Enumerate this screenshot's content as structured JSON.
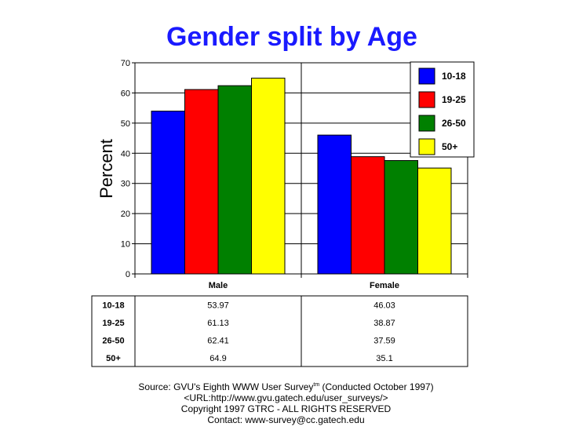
{
  "chart_data": {
    "type": "bar",
    "title": "Gender split by Age",
    "ylabel": "Percent",
    "ylim": [
      0,
      70
    ],
    "yticks": [
      0,
      10,
      20,
      30,
      40,
      50,
      60,
      70
    ],
    "categories": [
      "Male",
      "Female"
    ],
    "series": [
      {
        "name": "10-18",
        "color": "#0000ff",
        "values": [
          53.97,
          46.03
        ]
      },
      {
        "name": "19-25",
        "color": "#ff0000",
        "values": [
          61.13,
          38.87
        ]
      },
      {
        "name": "26-50",
        "color": "#008000",
        "values": [
          62.41,
          37.59
        ]
      },
      {
        "name": "50+",
        "color": "#ffff00",
        "values": [
          64.9,
          35.1
        ]
      }
    ],
    "legend_position": "top-right",
    "grid": true
  },
  "table": {
    "rows": [
      {
        "label": "10-18",
        "values": [
          "53.97",
          "46.03"
        ]
      },
      {
        "label": "19-25",
        "values": [
          "61.13",
          "38.87"
        ]
      },
      {
        "label": "26-50",
        "values": [
          "62.41",
          "37.59"
        ]
      },
      {
        "label": "50+",
        "values": [
          "64.9",
          "35.1"
        ]
      }
    ]
  },
  "footer": {
    "source_prefix": "Source: GVU's Eighth WWW User Survey",
    "source_sup": "tm",
    "source_suffix": " (Conducted October 1997)",
    "url": "<URL:http://www.gvu.gatech.edu/user_surveys/>",
    "copyright": "Copyright 1997 GTRC - ALL RIGHTS RESERVED",
    "contact": "Contact: www-survey@cc.gatech.edu"
  }
}
